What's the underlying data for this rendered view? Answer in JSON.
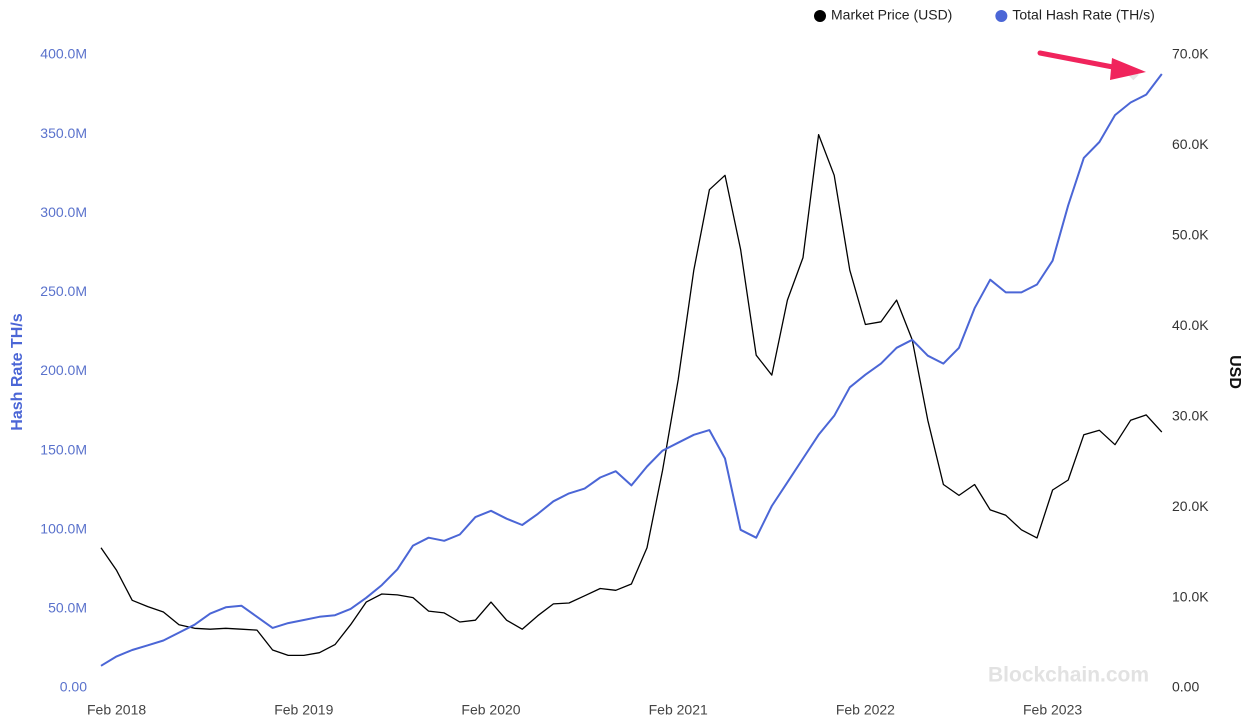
{
  "chart_data": {
    "type": "line",
    "ylabel": "Hash Rate TH/s",
    "y2label": "USD",
    "watermark": "Blockchain.com",
    "x": [
      "2018-01",
      "2018-02",
      "2018-03",
      "2018-04",
      "2018-05",
      "2018-06",
      "2018-07",
      "2018-08",
      "2018-09",
      "2018-10",
      "2018-11",
      "2018-12",
      "2019-01",
      "2019-02",
      "2019-03",
      "2019-04",
      "2019-05",
      "2019-06",
      "2019-07",
      "2019-08",
      "2019-09",
      "2019-10",
      "2019-11",
      "2019-12",
      "2020-01",
      "2020-02",
      "2020-03",
      "2020-04",
      "2020-05",
      "2020-06",
      "2020-07",
      "2020-08",
      "2020-09",
      "2020-10",
      "2020-11",
      "2020-12",
      "2021-01",
      "2021-02",
      "2021-03",
      "2021-04",
      "2021-05",
      "2021-06",
      "2021-07",
      "2021-08",
      "2021-09",
      "2021-10",
      "2021-11",
      "2021-12",
      "2022-01",
      "2022-02",
      "2022-03",
      "2022-04",
      "2022-05",
      "2022-06",
      "2022-07",
      "2022-08",
      "2022-09",
      "2022-10",
      "2022-11",
      "2022-12",
      "2023-01",
      "2023-02",
      "2023-03",
      "2023-04",
      "2023-05",
      "2023-06",
      "2023-07",
      "2023-08",
      "2023-09"
    ],
    "xticks": [
      {
        "value": "2018-02",
        "label": "Feb 2018"
      },
      {
        "value": "2019-02",
        "label": "Feb 2019"
      },
      {
        "value": "2020-02",
        "label": "Feb 2020"
      },
      {
        "value": "2021-02",
        "label": "Feb 2021"
      },
      {
        "value": "2022-02",
        "label": "Feb 2022"
      },
      {
        "value": "2023-02",
        "label": "Feb 2023"
      }
    ],
    "ylim": [
      0,
      400000000
    ],
    "yticks": [
      {
        "value": 0,
        "label": "0.00"
      },
      {
        "value": 50000000,
        "label": "50.0M"
      },
      {
        "value": 100000000,
        "label": "100.0M"
      },
      {
        "value": 150000000,
        "label": "150.0M"
      },
      {
        "value": 200000000,
        "label": "200.0M"
      },
      {
        "value": 250000000,
        "label": "250.0M"
      },
      {
        "value": 300000000,
        "label": "300.0M"
      },
      {
        "value": 350000000,
        "label": "350.0M"
      },
      {
        "value": 400000000,
        "label": "400.0M"
      }
    ],
    "y2lim": [
      0,
      70000
    ],
    "y2ticks": [
      {
        "value": 0,
        "label": "0.00"
      },
      {
        "value": 10000,
        "label": "10.0K"
      },
      {
        "value": 20000,
        "label": "20.0K"
      },
      {
        "value": 30000,
        "label": "30.0K"
      },
      {
        "value": 40000,
        "label": "40.0K"
      },
      {
        "value": 50000,
        "label": "50.0K"
      },
      {
        "value": 60000,
        "label": "60.0K"
      },
      {
        "value": 70000,
        "label": "70.0K"
      }
    ],
    "grid": false,
    "legend": "top-right",
    "series": [
      {
        "name": "Market Price (USD)",
        "color": "#000000",
        "axis": "y2",
        "values": [
          15500,
          13000,
          9700,
          9000,
          8400,
          7000,
          6600,
          6500,
          6600,
          6500,
          6400,
          4200,
          3600,
          3600,
          3900,
          4800,
          7000,
          9500,
          10400,
          10300,
          10000,
          8500,
          8300,
          7300,
          7500,
          9500,
          7500,
          6500,
          8000,
          9300,
          9400,
          10200,
          11000,
          10800,
          11500,
          15500,
          24100,
          34100,
          46200,
          55100,
          56700,
          48500,
          36800,
          34600,
          42900,
          47600,
          61200,
          56700,
          46200,
          40200,
          40500,
          42900,
          38500,
          29600,
          22500,
          21300,
          22500,
          19700,
          19100,
          17500,
          16600,
          21900,
          23000,
          28000,
          28500,
          26900,
          29600,
          30200,
          28300
        ]
      },
      {
        "name": "Total Hash Rate (TH/s)",
        "color": "#4b66d6",
        "axis": "y",
        "values": [
          14000000,
          20000000,
          24000000,
          27000000,
          30000000,
          35000000,
          40000000,
          47000000,
          51000000,
          52000000,
          45000000,
          38000000,
          41000000,
          43000000,
          45000000,
          46000000,
          50000000,
          57000000,
          65000000,
          75000000,
          90000000,
          95000000,
          93000000,
          97000000,
          108000000,
          112000000,
          107000000,
          103000000,
          110000000,
          118000000,
          123000000,
          126000000,
          133000000,
          137000000,
          128000000,
          140000000,
          150000000,
          155000000,
          160000000,
          163000000,
          145000000,
          100000000,
          95000000,
          115000000,
          130000000,
          145000000,
          160000000,
          172000000,
          190000000,
          198000000,
          205000000,
          215000000,
          220000000,
          210000000,
          205000000,
          215000000,
          240000000,
          258000000,
          250000000,
          250000000,
          255000000,
          270000000,
          305000000,
          335000000,
          345000000,
          362000000,
          370000000,
          375000000,
          388000000
        ]
      }
    ]
  }
}
